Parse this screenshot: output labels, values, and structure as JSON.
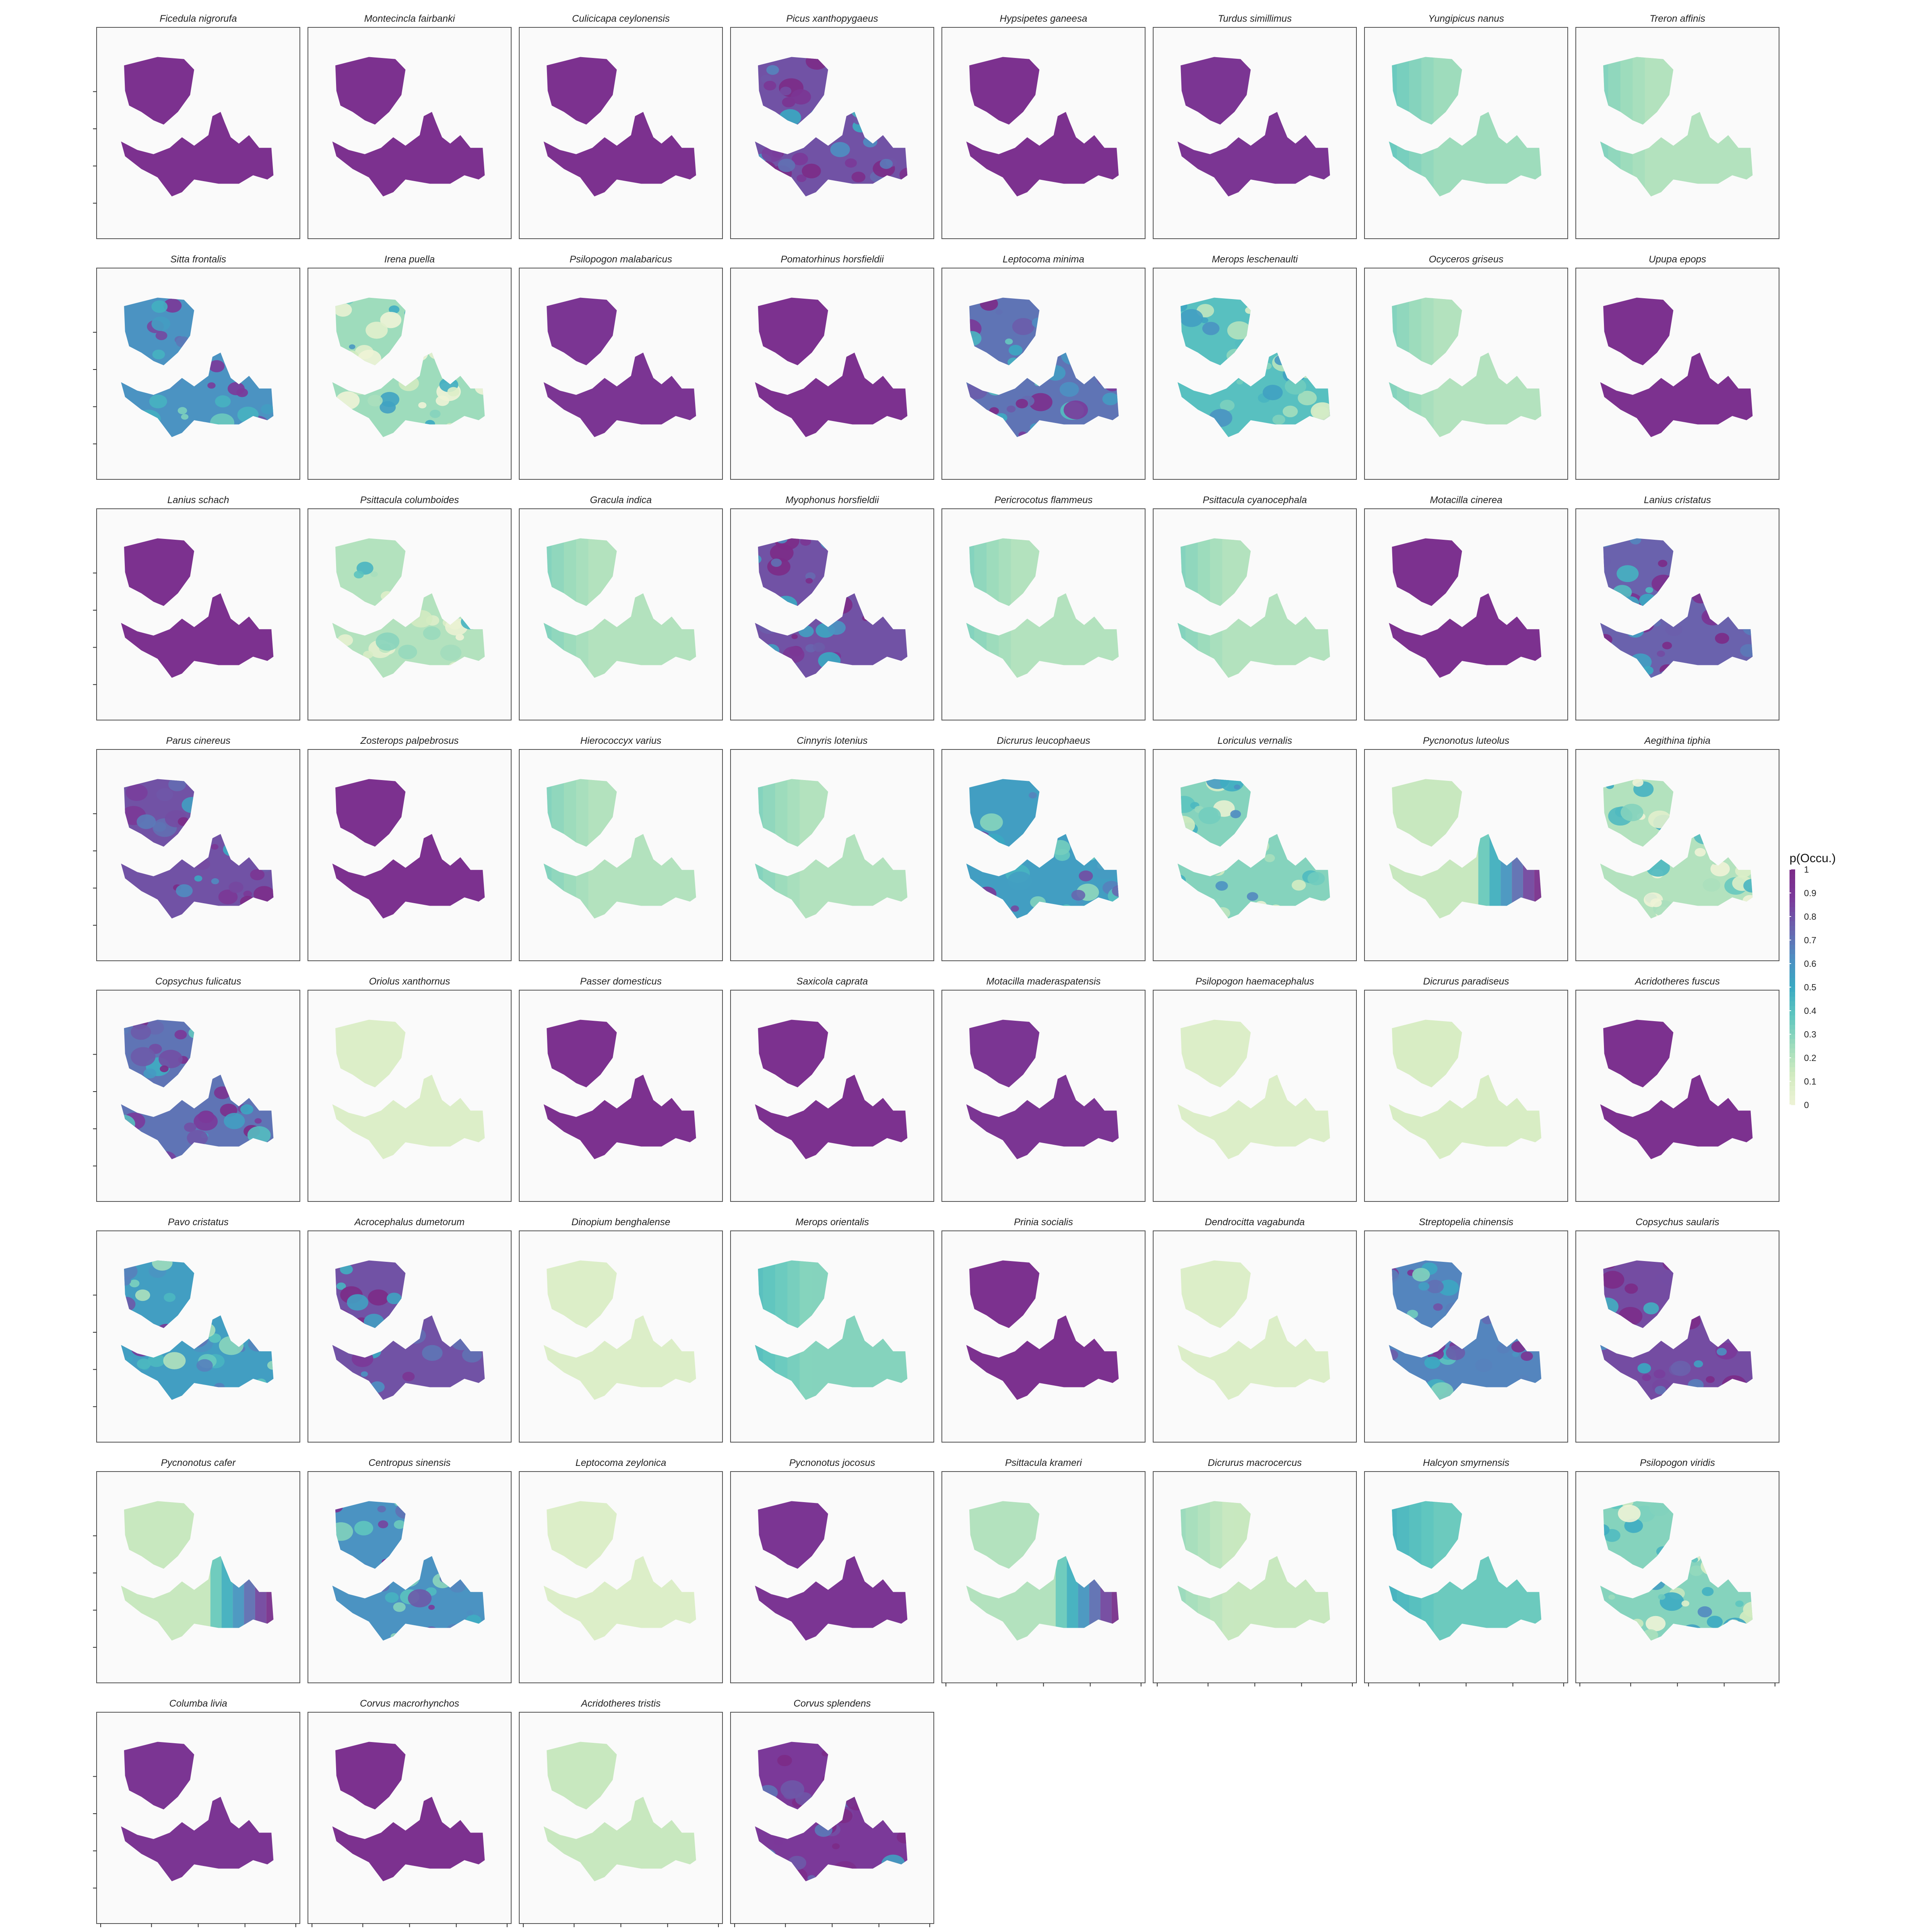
{
  "chart_data": {
    "type": "heatmap",
    "title": "",
    "layout": {
      "columns": 8,
      "rows": 8
    },
    "legend": {
      "title": "p(Occu.)",
      "placement": "right",
      "ticks": [
        "1",
        "0.9",
        "0.8",
        "0.7",
        "0.6",
        "0.5",
        "0.4",
        "0.3",
        "0.2",
        "0.1",
        "0"
      ],
      "range": [
        0,
        1
      ]
    },
    "palette": {
      "stops": [
        "#eef3d6",
        "#d2ebc0",
        "#9edcbc",
        "#5fc6bf",
        "#3aa9c2",
        "#4f8ec2",
        "#6a62ad",
        "#7b3a9a",
        "#7c2b87"
      ],
      "panel_background": "#fafafa",
      "panel_border": "#555555"
    },
    "panels": [
      {
        "species": "Ficedula nigrorufa",
        "level": 0.95,
        "pattern": "uniform"
      },
      {
        "species": "Montecincla fairbanki",
        "level": 0.95,
        "pattern": "uniform"
      },
      {
        "species": "Culicicapa ceylonensis",
        "level": 0.95,
        "pattern": "uniform"
      },
      {
        "species": "Picus xanthopygaeus",
        "level": 0.8,
        "pattern": "patchy"
      },
      {
        "species": "Hypsipetes ganeesa",
        "level": 0.95,
        "pattern": "uniform"
      },
      {
        "species": "Turdus simillimus",
        "level": 0.92,
        "pattern": "uniform"
      },
      {
        "species": "Yungipicus nanus",
        "level": 0.25,
        "pattern": "west"
      },
      {
        "species": "Treron affinis",
        "level": 0.2,
        "pattern": "west"
      },
      {
        "species": "Sitta frontalis",
        "level": 0.6,
        "pattern": "patchy"
      },
      {
        "species": "Irena puella",
        "level": 0.25,
        "pattern": "patchy"
      },
      {
        "species": "Psilopogon malabaricus",
        "level": 0.92,
        "pattern": "uniform"
      },
      {
        "species": "Pomatorhinus horsfieldii",
        "level": 0.95,
        "pattern": "uniform"
      },
      {
        "species": "Leptocoma minima",
        "level": 0.7,
        "pattern": "patchy"
      },
      {
        "species": "Merops leschenaulti",
        "level": 0.4,
        "pattern": "patchy"
      },
      {
        "species": "Ocyceros griseus",
        "level": 0.2,
        "pattern": "west"
      },
      {
        "species": "Upupa epops",
        "level": 0.95,
        "pattern": "uniform"
      },
      {
        "species": "Lanius schach",
        "level": 0.95,
        "pattern": "uniform"
      },
      {
        "species": "Psittacula columboides",
        "level": 0.2,
        "pattern": "patchy"
      },
      {
        "species": "Gracula indica",
        "level": 0.2,
        "pattern": "west"
      },
      {
        "species": "Myophonus horsfieldii",
        "level": 0.8,
        "pattern": "patchy"
      },
      {
        "species": "Pericrocotus flammeus",
        "level": 0.2,
        "pattern": "west"
      },
      {
        "species": "Psittacula cyanocephala",
        "level": 0.2,
        "pattern": "west"
      },
      {
        "species": "Motacilla cinerea",
        "level": 0.95,
        "pattern": "uniform"
      },
      {
        "species": "Lanius cristatus",
        "level": 0.75,
        "pattern": "patchy"
      },
      {
        "species": "Parus cinereus",
        "level": 0.8,
        "pattern": "patchy"
      },
      {
        "species": "Zosterops palpebrosus",
        "level": 0.95,
        "pattern": "uniform"
      },
      {
        "species": "Hierococcyx varius",
        "level": 0.2,
        "pattern": "west"
      },
      {
        "species": "Cinnyris lotenius",
        "level": 0.2,
        "pattern": "west"
      },
      {
        "species": "Dicrurus leucophaeus",
        "level": 0.55,
        "pattern": "patchy"
      },
      {
        "species": "Loriculus vernalis",
        "level": 0.3,
        "pattern": "patchy"
      },
      {
        "species": "Pycnonotus luteolus",
        "level": 0.15,
        "pattern": "east"
      },
      {
        "species": "Aegithina tiphia",
        "level": 0.2,
        "pattern": "patchy"
      },
      {
        "species": "Copsychus fulicatus",
        "level": 0.7,
        "pattern": "patchy"
      },
      {
        "species": "Oriolus xanthornus",
        "level": 0.08,
        "pattern": "uniform"
      },
      {
        "species": "Passer domesticus",
        "level": 0.95,
        "pattern": "uniform"
      },
      {
        "species": "Saxicola caprata",
        "level": 0.95,
        "pattern": "uniform"
      },
      {
        "species": "Motacilla maderaspatensis",
        "level": 0.92,
        "pattern": "uniform"
      },
      {
        "species": "Psilopogon haemacephalus",
        "level": 0.08,
        "pattern": "uniform"
      },
      {
        "species": "Dicrurus paradiseus",
        "level": 0.1,
        "pattern": "uniform"
      },
      {
        "species": "Acridotheres fuscus",
        "level": 0.95,
        "pattern": "uniform"
      },
      {
        "species": "Pavo cristatus",
        "level": 0.55,
        "pattern": "patchy"
      },
      {
        "species": "Acrocephalus dumetorum",
        "level": 0.8,
        "pattern": "patchy"
      },
      {
        "species": "Dinopium benghalense",
        "level": 0.08,
        "pattern": "uniform"
      },
      {
        "species": "Merops orientalis",
        "level": 0.3,
        "pattern": "west"
      },
      {
        "species": "Prinia socialis",
        "level": 0.95,
        "pattern": "uniform"
      },
      {
        "species": "Dendrocitta vagabunda",
        "level": 0.08,
        "pattern": "uniform"
      },
      {
        "species": "Streptopelia chinensis",
        "level": 0.65,
        "pattern": "patchy"
      },
      {
        "species": "Copsychus saularis",
        "level": 0.82,
        "pattern": "patchy"
      },
      {
        "species": "Pycnonotus cafer",
        "level": 0.15,
        "pattern": "east"
      },
      {
        "species": "Centropus sinensis",
        "level": 0.6,
        "pattern": "patchy"
      },
      {
        "species": "Leptocoma zeylonica",
        "level": 0.08,
        "pattern": "uniform"
      },
      {
        "species": "Pycnonotus jocosus",
        "level": 0.92,
        "pattern": "uniform"
      },
      {
        "species": "Psittacula krameri",
        "level": 0.2,
        "pattern": "east"
      },
      {
        "species": "Dicrurus macrocercus",
        "level": 0.15,
        "pattern": "west"
      },
      {
        "species": "Halcyon smyrnensis",
        "level": 0.35,
        "pattern": "west"
      },
      {
        "species": "Psilopogon viridis",
        "level": 0.3,
        "pattern": "patchy"
      },
      {
        "species": "Columba livia",
        "level": 0.92,
        "pattern": "uniform"
      },
      {
        "species": "Corvus macrorhynchos",
        "level": 0.95,
        "pattern": "uniform"
      },
      {
        "species": "Acridotheres tristis",
        "level": 0.15,
        "pattern": "uniform"
      },
      {
        "species": "Corvus splendens",
        "level": 0.88,
        "pattern": "patchy"
      }
    ]
  }
}
